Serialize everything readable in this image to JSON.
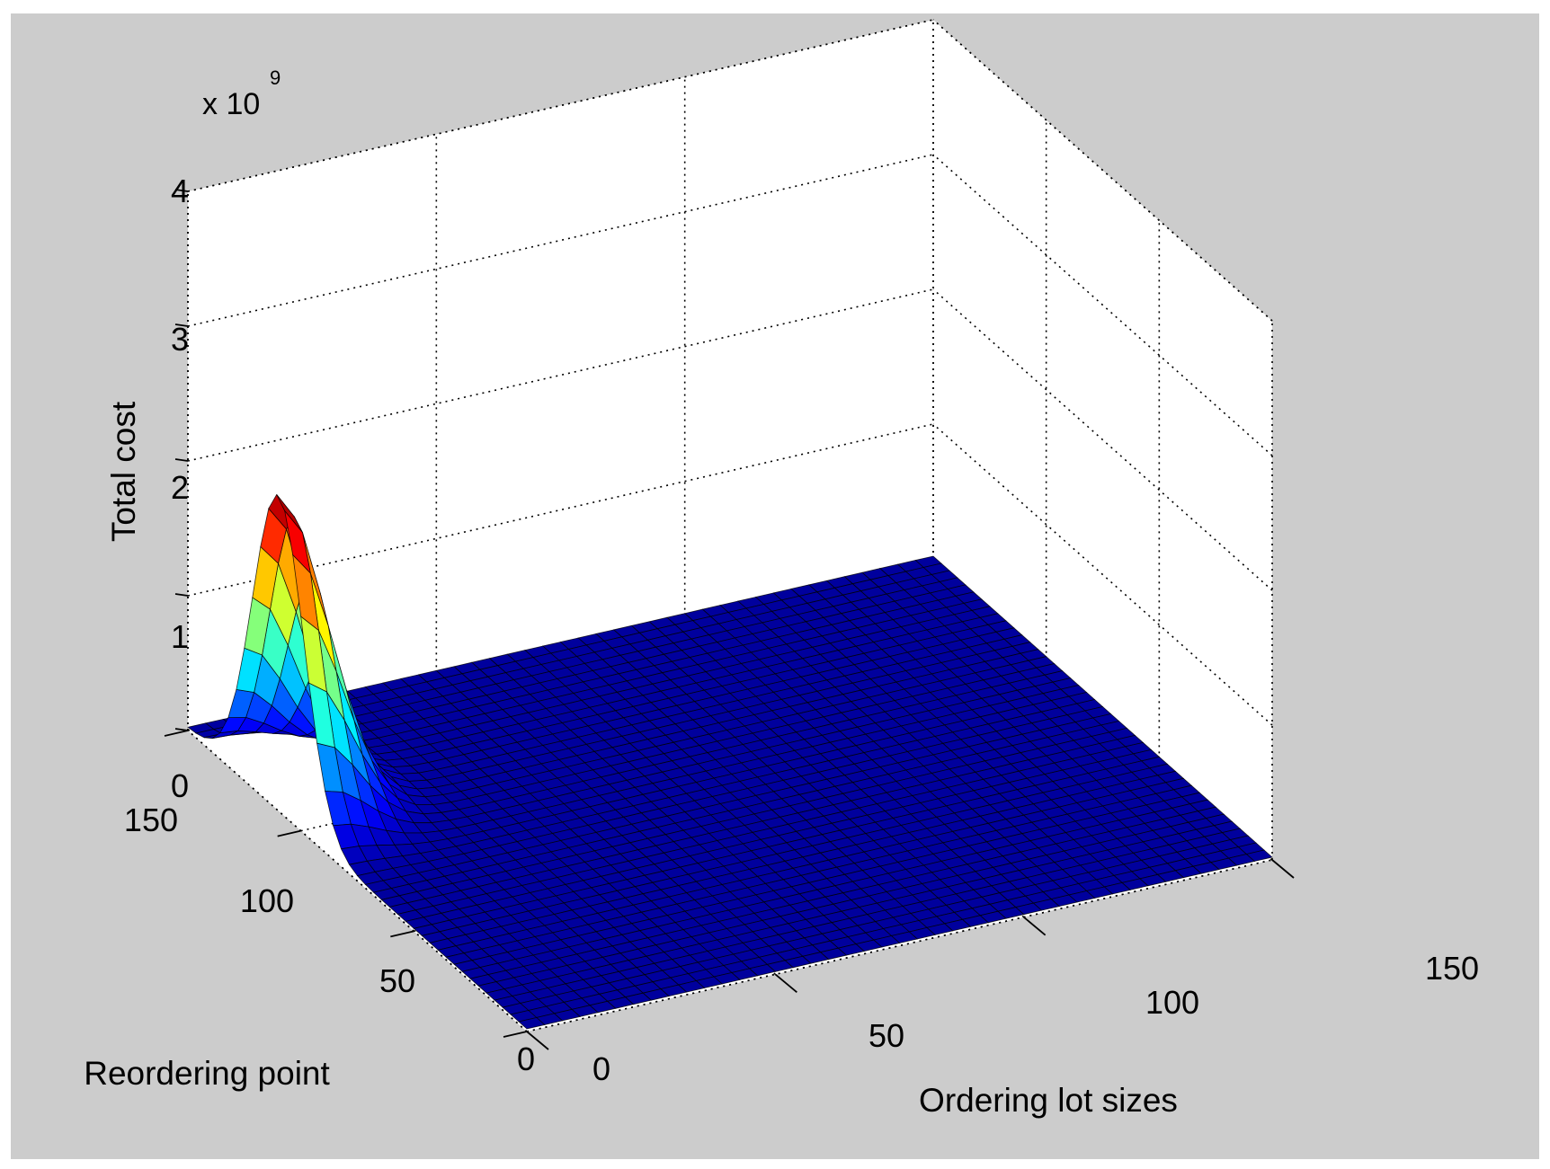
{
  "figure_window": {
    "background": "#cccccc"
  },
  "chart_data": {
    "type": "surface",
    "title": "",
    "xlabel": "Ordering lot sizes",
    "ylabel": "Reordering point",
    "zlabel": "Total cost",
    "z_multiplier_label": {
      "base": "x 10",
      "exponent": "9"
    },
    "xlim": [
      0,
      150
    ],
    "ylim": [
      0,
      150
    ],
    "zlim": [
      0,
      4
    ],
    "x_ticks": [
      "0",
      "50",
      "100",
      "150"
    ],
    "y_ticks": [
      "0",
      "50",
      "100",
      "150"
    ],
    "z_ticks": [
      "0",
      "1",
      "2",
      "3",
      "4"
    ],
    "grid": true,
    "colormap": "jet",
    "surface_shape": {
      "peak_value": 2320000000.0,
      "peak_at_lot_size": 0,
      "peak_at_reordering_point": 110,
      "peak_spread_lot_size": 12,
      "peak_spread_reordering_point": 16,
      "background_level": 20000000.0
    }
  }
}
